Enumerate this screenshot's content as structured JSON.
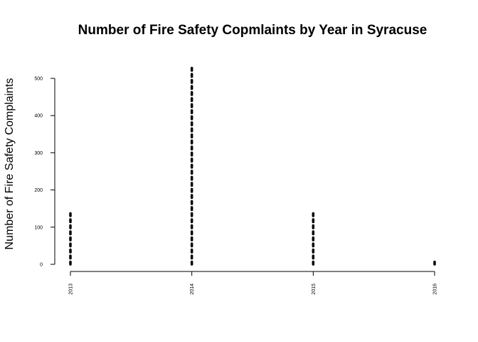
{
  "chart_data": {
    "type": "bar",
    "style": "dotted-vertical-lines",
    "title": "Number of Fire Safety Copmlaints by Year in Syracuse",
    "xlabel": "",
    "ylabel": "Number of Fire Safety Complaints",
    "categories": [
      "2013",
      "2014",
      "2015",
      "2016"
    ],
    "values": [
      145,
      535,
      143,
      7
    ],
    "ylim": [
      0,
      540
    ],
    "yticks": [
      0,
      100,
      200,
      300,
      400,
      500
    ],
    "grid": false,
    "x_tick_rotation": "vertical",
    "color": "#000000"
  }
}
